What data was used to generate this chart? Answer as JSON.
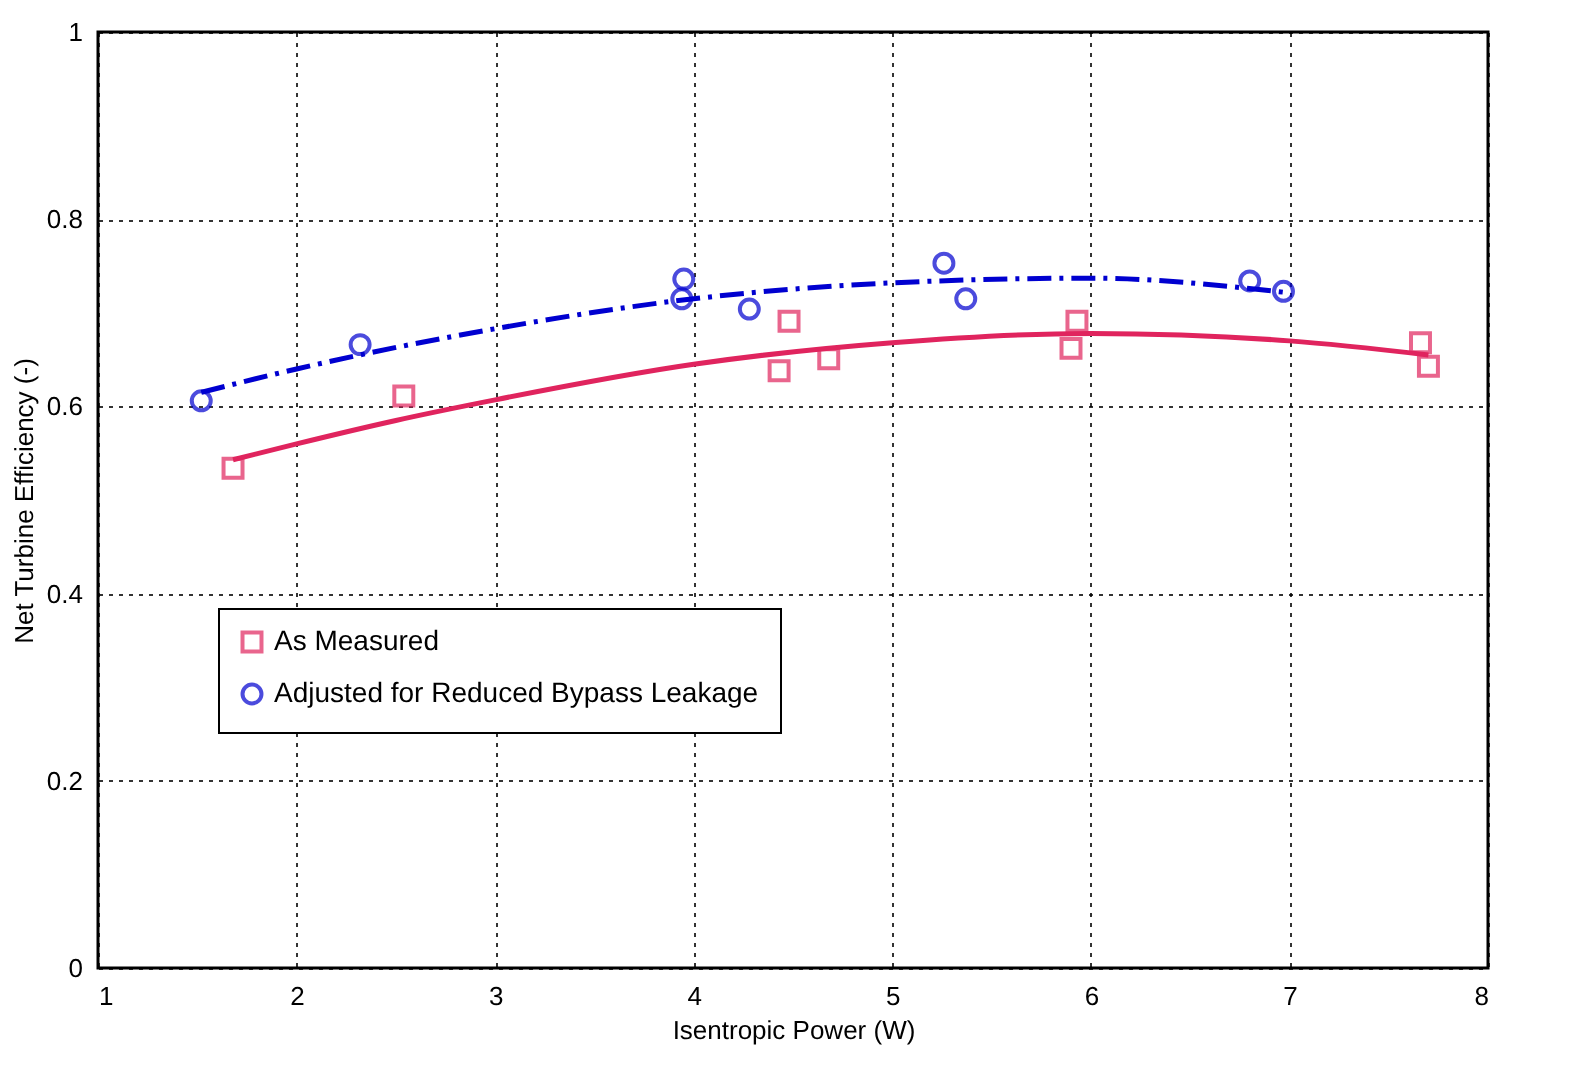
{
  "chart_data": {
    "type": "scatter",
    "xlabel": "Isentropic Power (W)",
    "ylabel": "Net Turbine Efficiency (-)",
    "xlim": [
      1,
      8
    ],
    "xticks": [
      1,
      2,
      3,
      4,
      5,
      6,
      7,
      8
    ],
    "ylim": [
      0,
      1
    ],
    "yticks": [
      0,
      0.2,
      0.4,
      0.6,
      0.8,
      1
    ],
    "grid": true,
    "legend": "bottom left",
    "series": [
      {
        "name": "As Measured",
        "marker": "square",
        "color": "#e0245e",
        "x": [
          1.68,
          2.54,
          4.43,
          4.48,
          4.68,
          5.9,
          5.93,
          7.66,
          7.7
        ],
        "values": [
          0.534,
          0.611,
          0.638,
          0.691,
          0.651,
          0.662,
          0.691,
          0.668,
          0.643
        ]
      },
      {
        "name": "Adjusted for Reduced Bypass Leakage",
        "marker": "circle",
        "color": "#0000d0",
        "x": [
          1.52,
          2.32,
          3.94,
          3.95,
          4.28,
          5.26,
          5.37,
          6.8,
          6.97
        ],
        "values": [
          0.606,
          0.666,
          0.715,
          0.736,
          0.704,
          0.753,
          0.715,
          0.734,
          0.723
        ]
      },
      {
        "type": "line",
        "line_style": "solid",
        "marker": "none",
        "color": "#e0245e",
        "x": [
          1.68,
          2,
          2.5,
          3,
          4,
          5,
          6,
          7,
          7.7
        ],
        "values": [
          0.543,
          0.56,
          0.585,
          0.607,
          0.645,
          0.668,
          0.678,
          0.67,
          0.655
        ]
      },
      {
        "type": "line",
        "line_style": "dashed",
        "marker": "none",
        "color": "#0000d0",
        "x": [
          1.52,
          2,
          3,
          4,
          5,
          6,
          6.97
        ],
        "values": [
          0.615,
          0.64,
          0.683,
          0.715,
          0.732,
          0.737,
          0.722
        ]
      }
    ]
  }
}
